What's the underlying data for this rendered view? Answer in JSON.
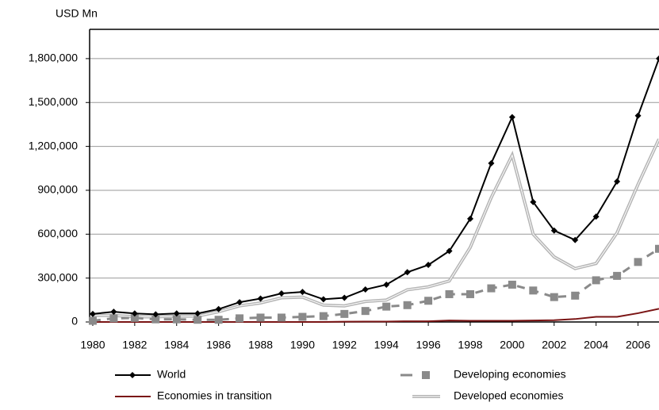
{
  "chart_data": {
    "type": "line",
    "ylabel": "USD Mn",
    "x": [
      1980,
      1981,
      1982,
      1983,
      1984,
      1985,
      1986,
      1987,
      1988,
      1989,
      1990,
      1991,
      1992,
      1993,
      1994,
      1995,
      1996,
      1997,
      1998,
      1999,
      2000,
      2001,
      2002,
      2003,
      2004,
      2005,
      2006,
      2007
    ],
    "xlim": [
      1979.85,
      2007
    ],
    "xticks": [
      1980,
      1982,
      1984,
      1986,
      1988,
      1990,
      1992,
      1994,
      1996,
      1998,
      2000,
      2002,
      2004,
      2006
    ],
    "ylim": [
      0,
      2000000
    ],
    "yticks": [
      {
        "value": 0,
        "label": "0"
      },
      {
        "value": 300000,
        "label": "300,000"
      },
      {
        "value": 600000,
        "label": "600,000"
      },
      {
        "value": 900000,
        "label": "900,000"
      },
      {
        "value": 1200000,
        "label": "1,200,000"
      },
      {
        "value": 1500000,
        "label": "1,500,000"
      },
      {
        "value": 1800000,
        "label": "1,800,000"
      }
    ],
    "grid": true,
    "legend": "bottom",
    "series": [
      {
        "name": "World",
        "color": "#000000",
        "values": [
          55000,
          70000,
          58000,
          52000,
          58000,
          58000,
          88000,
          135000,
          160000,
          195000,
          205000,
          155000,
          165000,
          222000,
          255000,
          340000,
          390000,
          485000,
          705000,
          1085000,
          1400000,
          820000,
          625000,
          560000,
          720000,
          960000,
          1410000,
          1800000
        ]
      },
      {
        "name": "Developing economies",
        "color": "#8a8a8a",
        "values": [
          8000,
          25000,
          28000,
          18000,
          18000,
          15000,
          15000,
          25000,
          30000,
          30000,
          35000,
          40000,
          55000,
          75000,
          105000,
          115000,
          145000,
          190000,
          190000,
          230000,
          255000,
          215000,
          170000,
          180000,
          285000,
          315000,
          410000,
          500000
        ]
      },
      {
        "name": "Economies in transition",
        "color": "#7a1414",
        "values": [
          0,
          0,
          0,
          0,
          0,
          0,
          0,
          0,
          0,
          0,
          0,
          0,
          2000,
          3000,
          3000,
          5000,
          5000,
          10000,
          8000,
          8000,
          8000,
          10000,
          12000,
          20000,
          35000,
          35000,
          60000,
          90000
        ]
      },
      {
        "name": "Developed economies",
        "color": "#b5b5b5",
        "values": [
          45000,
          45000,
          35000,
          35000,
          40000,
          40000,
          70000,
          110000,
          130000,
          165000,
          170000,
          115000,
          110000,
          140000,
          150000,
          220000,
          240000,
          280000,
          510000,
          850000,
          1140000,
          600000,
          445000,
          365000,
          400000,
          610000,
          940000,
          1250000
        ]
      }
    ]
  }
}
